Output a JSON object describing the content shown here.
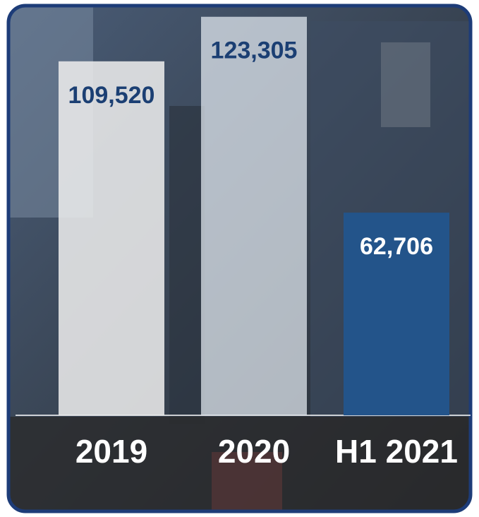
{
  "chart_data": {
    "type": "bar",
    "categories": [
      "2019",
      "2020",
      "H1 2021"
    ],
    "values": [
      109520,
      123305,
      62706
    ],
    "value_labels": [
      "109,520",
      "123,305",
      "62,706"
    ],
    "colors": [
      "#ecececdd",
      "#e4ebf2b8",
      "#23548a"
    ],
    "ylim": [
      0,
      125000
    ]
  }
}
